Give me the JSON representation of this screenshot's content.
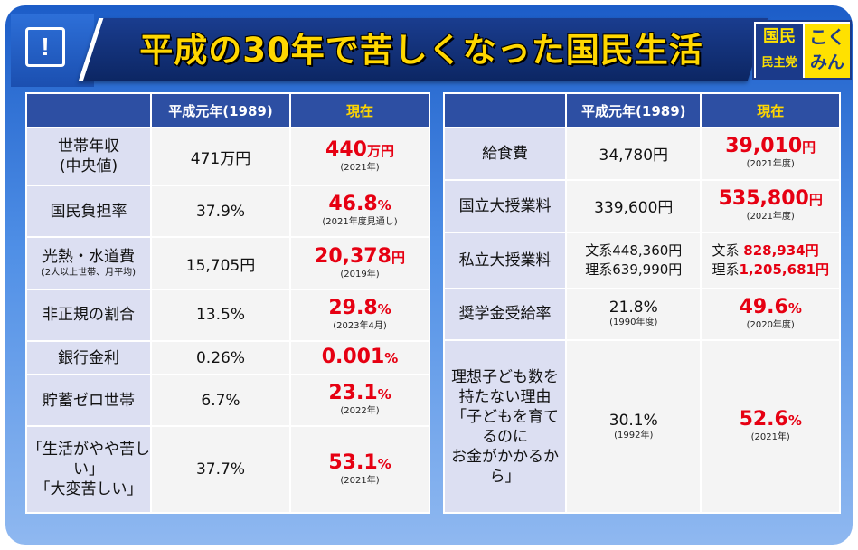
{
  "header": {
    "alert_icon": "!",
    "title": "平成の30年で苦しくなった国民生活",
    "logo": {
      "line1": "国民",
      "line2": "民主党",
      "line3": "こく",
      "line4": "みん"
    }
  },
  "left_table": {
    "col_old": "平成元年(1989)",
    "col_new": "現在",
    "rows": [
      {
        "label": "世帯年収",
        "label2": "(中央値)",
        "label_sub": "",
        "old": "471万円",
        "new_value": "440",
        "new_unit": "万円",
        "new_note": "(2021年)"
      },
      {
        "label": "国民負担率",
        "label2": "",
        "label_sub": "",
        "old": "37.9%",
        "new_value": "46.8",
        "new_unit": "%",
        "new_note": "(2021年度見通し)"
      },
      {
        "label": "光熱・水道費",
        "label2": "",
        "label_sub": "(2人以上世帯、月平均)",
        "old": "15,705円",
        "new_value": "20,378",
        "new_unit": "円",
        "new_note": "(2019年)"
      },
      {
        "label": "非正規の割合",
        "label2": "",
        "label_sub": "",
        "old": "13.5%",
        "new_value": "29.8",
        "new_unit": "%",
        "new_note": "(2023年4月)"
      },
      {
        "label": "銀行金利",
        "label2": "",
        "label_sub": "",
        "old": "0.26%",
        "new_value": "0.001",
        "new_unit": "%",
        "new_note": ""
      },
      {
        "label": "貯蓄ゼロ世帯",
        "label2": "",
        "label_sub": "",
        "old": "6.7%",
        "new_value": "23.1",
        "new_unit": "%",
        "new_note": "(2022年)"
      },
      {
        "label": "「生活がやや苦しい」",
        "label2": "「大変苦しい」",
        "label_sub": "",
        "old": "37.7%",
        "new_value": "53.1",
        "new_unit": "%",
        "new_note": "(2021年)"
      }
    ]
  },
  "right_table": {
    "col_old": "平成元年(1989)",
    "col_new": "現在",
    "rows": [
      {
        "label": "給食費",
        "old": "34,780円",
        "old_note": "",
        "new_value": "39,010",
        "new_unit": "円",
        "new_note": "(2021年度)"
      },
      {
        "label": "国立大授業料",
        "old": "339,600円",
        "old_note": "",
        "new_value": "535,800",
        "new_unit": "円",
        "new_note": "(2021年度)"
      },
      {
        "label": "私立大授業料",
        "old_a": "文系448,360円",
        "old_b": "理系639,990円",
        "new_a_label": "文系",
        "new_a_value": "828,934円",
        "new_b_label": "理系",
        "new_b_value": "1,205,681円"
      },
      {
        "label": "奨学金受給率",
        "old": "21.8%",
        "old_note": "(1990年度)",
        "new_value": "49.6",
        "new_unit": "%",
        "new_note": "(2020年度)"
      },
      {
        "label_lines": [
          "理想子ども数を",
          "持たない理由",
          "「子どもを育てるのに",
          "お金がかかるから」"
        ],
        "old": "30.1%",
        "old_note": "(1992年)",
        "new_value": "52.6",
        "new_unit": "%",
        "new_note": "(2021年)"
      }
    ]
  },
  "colors": {
    "accent_red": "#e60012",
    "title_yellow": "#ffd700",
    "header_blue": "#2d4fa3",
    "label_bg": "#dcdff2"
  }
}
